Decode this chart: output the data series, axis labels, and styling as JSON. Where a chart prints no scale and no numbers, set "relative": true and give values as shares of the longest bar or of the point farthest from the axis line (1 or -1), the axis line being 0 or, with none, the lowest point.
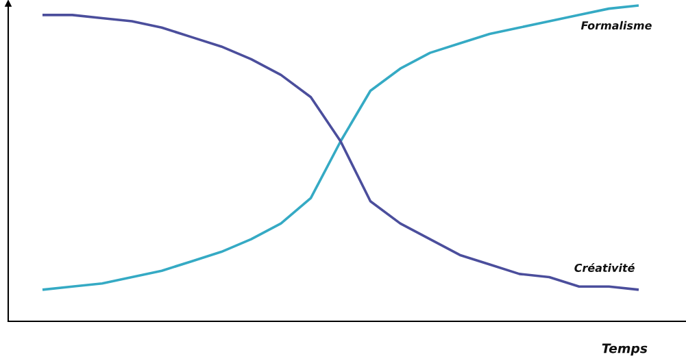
{
  "chart_data": {
    "type": "line",
    "relative": true,
    "xlabel": "Temps",
    "categories": [
      null,
      null,
      null,
      null,
      null,
      null,
      null,
      null,
      null,
      null,
      null,
      null,
      null,
      null,
      null,
      null,
      null,
      null,
      null,
      null,
      null
    ],
    "series": [
      {
        "name": "Formalisme",
        "color": "#35aac4",
        "values": [
          0.1,
          0.11,
          0.12,
          0.14,
          0.16,
          0.19,
          0.22,
          0.26,
          0.31,
          0.39,
          0.57,
          0.73,
          0.8,
          0.85,
          0.88,
          0.91,
          0.93,
          0.95,
          0.97,
          0.99,
          1.0
        ]
      },
      {
        "name": "Créativité",
        "color": "#4b4e9c",
        "values": [
          0.97,
          0.97,
          0.96,
          0.95,
          0.93,
          0.9,
          0.87,
          0.83,
          0.78,
          0.71,
          0.57,
          0.38,
          0.31,
          0.26,
          0.21,
          0.18,
          0.15,
          0.14,
          0.11,
          0.11,
          0.1
        ]
      }
    ]
  }
}
